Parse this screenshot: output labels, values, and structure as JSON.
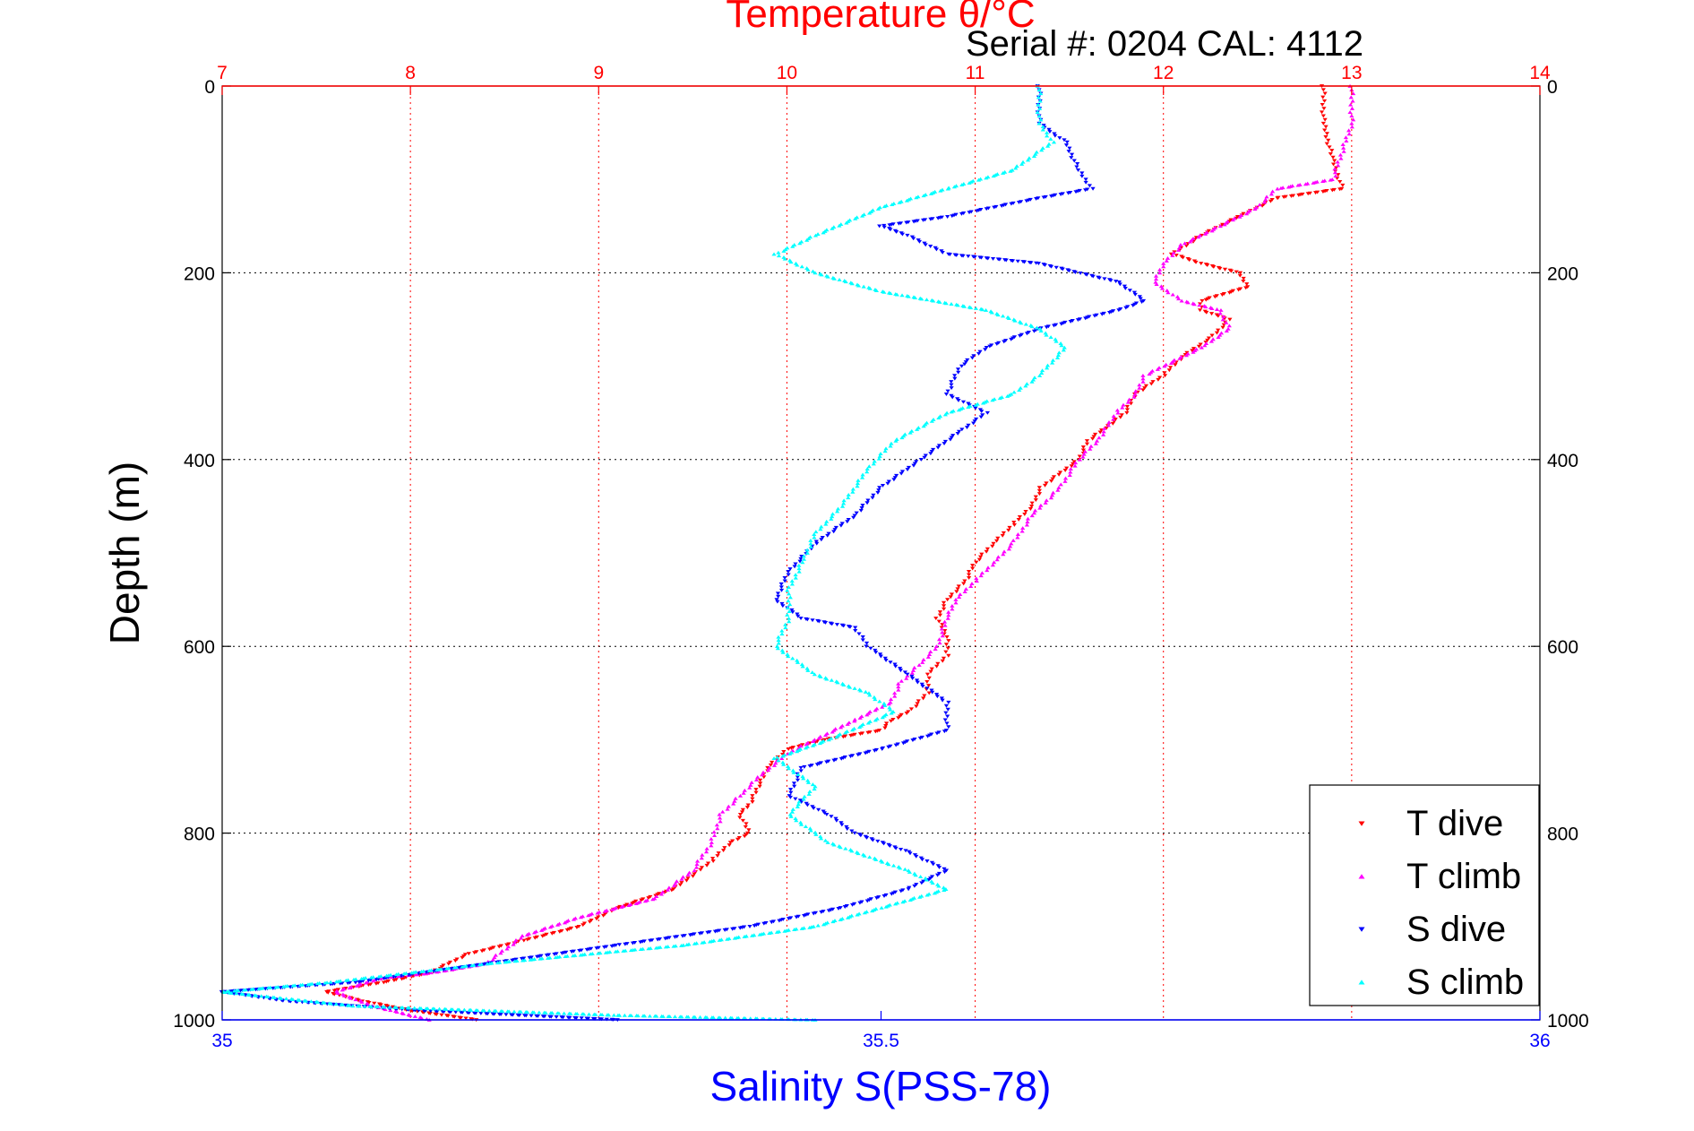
{
  "chart_data": {
    "type": "scatter",
    "title": "Temperature θ/°C",
    "subtitle": "Serial #: 0204  CAL: 4112",
    "ylabel": "Depth (m)",
    "xlabel_bottom": "Salinity S(PSS-78)",
    "xlabel_top": "Temperature θ/°C",
    "ylim": [
      0,
      1000
    ],
    "y_reversed": true,
    "salinity_xlim": [
      35,
      36
    ],
    "temperature_xlim": [
      7,
      14
    ],
    "y_ticks": [
      "0",
      "200",
      "400",
      "600",
      "800",
      "1000"
    ],
    "y_tick_values": [
      0,
      200,
      400,
      600,
      800,
      1000
    ],
    "salinity_ticks": [
      "35",
      "35.5",
      "36"
    ],
    "salinity_tick_values": [
      35,
      35.5,
      36
    ],
    "temperature_ticks": [
      "7",
      "8",
      "9",
      "10",
      "11",
      "12",
      "13",
      "14"
    ],
    "temperature_tick_values": [
      7,
      8,
      9,
      10,
      11,
      12,
      13,
      14
    ],
    "grid": true,
    "legend_position": "bottom-right",
    "colors": {
      "temperature_axis": "#ff0000",
      "salinity_axis": "#0000ff",
      "grid": "#000000"
    },
    "series": [
      {
        "name": "T dive",
        "axis": "temperature",
        "color": "#ff0000",
        "marker": "triangle-down",
        "points": [
          [
            12.85,
            0
          ],
          [
            12.85,
            40
          ],
          [
            12.9,
            80
          ],
          [
            12.95,
            110
          ],
          [
            12.6,
            120
          ],
          [
            12.4,
            140
          ],
          [
            12.2,
            160
          ],
          [
            12.05,
            180
          ],
          [
            12.2,
            190
          ],
          [
            12.4,
            200
          ],
          [
            12.45,
            215
          ],
          [
            12.2,
            230
          ],
          [
            12.2,
            240
          ],
          [
            12.35,
            250
          ],
          [
            12.25,
            270
          ],
          [
            12.1,
            290
          ],
          [
            12.0,
            310
          ],
          [
            11.85,
            330
          ],
          [
            11.8,
            350
          ],
          [
            11.6,
            380
          ],
          [
            11.55,
            400
          ],
          [
            11.35,
            430
          ],
          [
            11.3,
            450
          ],
          [
            11.2,
            470
          ],
          [
            11.1,
            490
          ],
          [
            11.0,
            510
          ],
          [
            10.95,
            530
          ],
          [
            10.85,
            550
          ],
          [
            10.8,
            570
          ],
          [
            10.85,
            590
          ],
          [
            10.85,
            610
          ],
          [
            10.75,
            630
          ],
          [
            10.75,
            650
          ],
          [
            10.65,
            670
          ],
          [
            10.55,
            680
          ],
          [
            10.5,
            690
          ],
          [
            10.2,
            700
          ],
          [
            10.0,
            710
          ],
          [
            9.9,
            730
          ],
          [
            9.85,
            750
          ],
          [
            9.8,
            770
          ],
          [
            9.75,
            780
          ],
          [
            9.8,
            800
          ],
          [
            9.7,
            810
          ],
          [
            9.6,
            830
          ],
          [
            9.4,
            860
          ],
          [
            9.1,
            880
          ],
          [
            8.9,
            900
          ],
          [
            8.6,
            915
          ],
          [
            8.3,
            930
          ],
          [
            8.1,
            950
          ],
          [
            7.85,
            960
          ],
          [
            7.7,
            965
          ],
          [
            7.55,
            970
          ],
          [
            7.75,
            980
          ],
          [
            8.0,
            990
          ],
          [
            8.35,
            1000
          ]
        ]
      },
      {
        "name": "T climb",
        "axis": "temperature",
        "color": "#ff00ff",
        "marker": "triangle-up",
        "points": [
          [
            13.0,
            0
          ],
          [
            13.0,
            40
          ],
          [
            12.95,
            70
          ],
          [
            12.9,
            100
          ],
          [
            12.6,
            110
          ],
          [
            12.5,
            130
          ],
          [
            12.3,
            150
          ],
          [
            12.1,
            170
          ],
          [
            12.0,
            190
          ],
          [
            11.95,
            210
          ],
          [
            12.1,
            230
          ],
          [
            12.3,
            240
          ],
          [
            12.35,
            260
          ],
          [
            12.2,
            280
          ],
          [
            11.9,
            310
          ],
          [
            11.85,
            330
          ],
          [
            11.75,
            350
          ],
          [
            11.65,
            380
          ],
          [
            11.55,
            400
          ],
          [
            11.45,
            430
          ],
          [
            11.3,
            460
          ],
          [
            11.2,
            490
          ],
          [
            11.1,
            510
          ],
          [
            11.0,
            530
          ],
          [
            10.9,
            550
          ],
          [
            10.85,
            570
          ],
          [
            10.8,
            600
          ],
          [
            10.7,
            620
          ],
          [
            10.6,
            640
          ],
          [
            10.55,
            660
          ],
          [
            10.35,
            680
          ],
          [
            10.15,
            700
          ],
          [
            10.0,
            715
          ],
          [
            9.85,
            740
          ],
          [
            9.75,
            760
          ],
          [
            9.65,
            780
          ],
          [
            9.6,
            810
          ],
          [
            9.5,
            840
          ],
          [
            9.3,
            870
          ],
          [
            8.9,
            890
          ],
          [
            8.6,
            910
          ],
          [
            8.4,
            940
          ],
          [
            8.1,
            950
          ],
          [
            7.85,
            955
          ],
          [
            7.6,
            970
          ],
          [
            7.8,
            985
          ],
          [
            8.1,
            1000
          ]
        ]
      },
      {
        "name": "S dive",
        "axis": "salinity",
        "color": "#0000ff",
        "marker": "triangle-down",
        "points": [
          [
            35.62,
            0
          ],
          [
            35.62,
            40
          ],
          [
            35.64,
            60
          ],
          [
            35.65,
            90
          ],
          [
            35.66,
            110
          ],
          [
            35.62,
            120
          ],
          [
            35.55,
            140
          ],
          [
            35.5,
            150
          ],
          [
            35.52,
            160
          ],
          [
            35.55,
            180
          ],
          [
            35.62,
            190
          ],
          [
            35.68,
            210
          ],
          [
            35.7,
            230
          ],
          [
            35.68,
            240
          ],
          [
            35.62,
            260
          ],
          [
            35.58,
            280
          ],
          [
            35.56,
            300
          ],
          [
            35.55,
            330
          ],
          [
            35.58,
            350
          ],
          [
            35.56,
            370
          ],
          [
            35.53,
            400
          ],
          [
            35.5,
            430
          ],
          [
            35.48,
            460
          ],
          [
            35.45,
            490
          ],
          [
            35.43,
            520
          ],
          [
            35.42,
            550
          ],
          [
            35.44,
            570
          ],
          [
            35.48,
            580
          ],
          [
            35.49,
            600
          ],
          [
            35.52,
            630
          ],
          [
            35.55,
            660
          ],
          [
            35.55,
            690
          ],
          [
            35.5,
            710
          ],
          [
            35.44,
            730
          ],
          [
            35.43,
            760
          ],
          [
            35.46,
            780
          ],
          [
            35.48,
            800
          ],
          [
            35.52,
            820
          ],
          [
            35.55,
            840
          ],
          [
            35.52,
            860
          ],
          [
            35.47,
            880
          ],
          [
            35.4,
            900
          ],
          [
            35.3,
            920
          ],
          [
            35.2,
            940
          ],
          [
            35.1,
            960
          ],
          [
            35.0,
            970
          ],
          [
            35.05,
            980
          ],
          [
            35.15,
            990
          ],
          [
            35.3,
            1000
          ]
        ]
      },
      {
        "name": "S climb",
        "axis": "salinity",
        "color": "#00ffff",
        "marker": "triangle-up",
        "points": [
          [
            35.62,
            0
          ],
          [
            35.62,
            40
          ],
          [
            35.63,
            60
          ],
          [
            35.6,
            90
          ],
          [
            35.55,
            110
          ],
          [
            35.5,
            130
          ],
          [
            35.45,
            160
          ],
          [
            35.42,
            180
          ],
          [
            35.45,
            200
          ],
          [
            35.5,
            220
          ],
          [
            35.58,
            240
          ],
          [
            35.62,
            260
          ],
          [
            35.64,
            280
          ],
          [
            35.62,
            310
          ],
          [
            35.6,
            330
          ],
          [
            35.55,
            350
          ],
          [
            35.51,
            380
          ],
          [
            35.49,
            410
          ],
          [
            35.47,
            450
          ],
          [
            35.45,
            480
          ],
          [
            35.44,
            510
          ],
          [
            35.43,
            540
          ],
          [
            35.43,
            570
          ],
          [
            35.42,
            600
          ],
          [
            35.45,
            630
          ],
          [
            35.49,
            650
          ],
          [
            35.51,
            670
          ],
          [
            35.46,
            700
          ],
          [
            35.42,
            720
          ],
          [
            35.45,
            750
          ],
          [
            35.43,
            780
          ],
          [
            35.46,
            810
          ],
          [
            35.52,
            840
          ],
          [
            35.55,
            860
          ],
          [
            35.5,
            880
          ],
          [
            35.45,
            900
          ],
          [
            35.35,
            920
          ],
          [
            35.2,
            940
          ],
          [
            35.08,
            960
          ],
          [
            35.0,
            970
          ],
          [
            35.1,
            985
          ],
          [
            35.3,
            995
          ],
          [
            35.45,
            1000
          ]
        ]
      }
    ]
  }
}
